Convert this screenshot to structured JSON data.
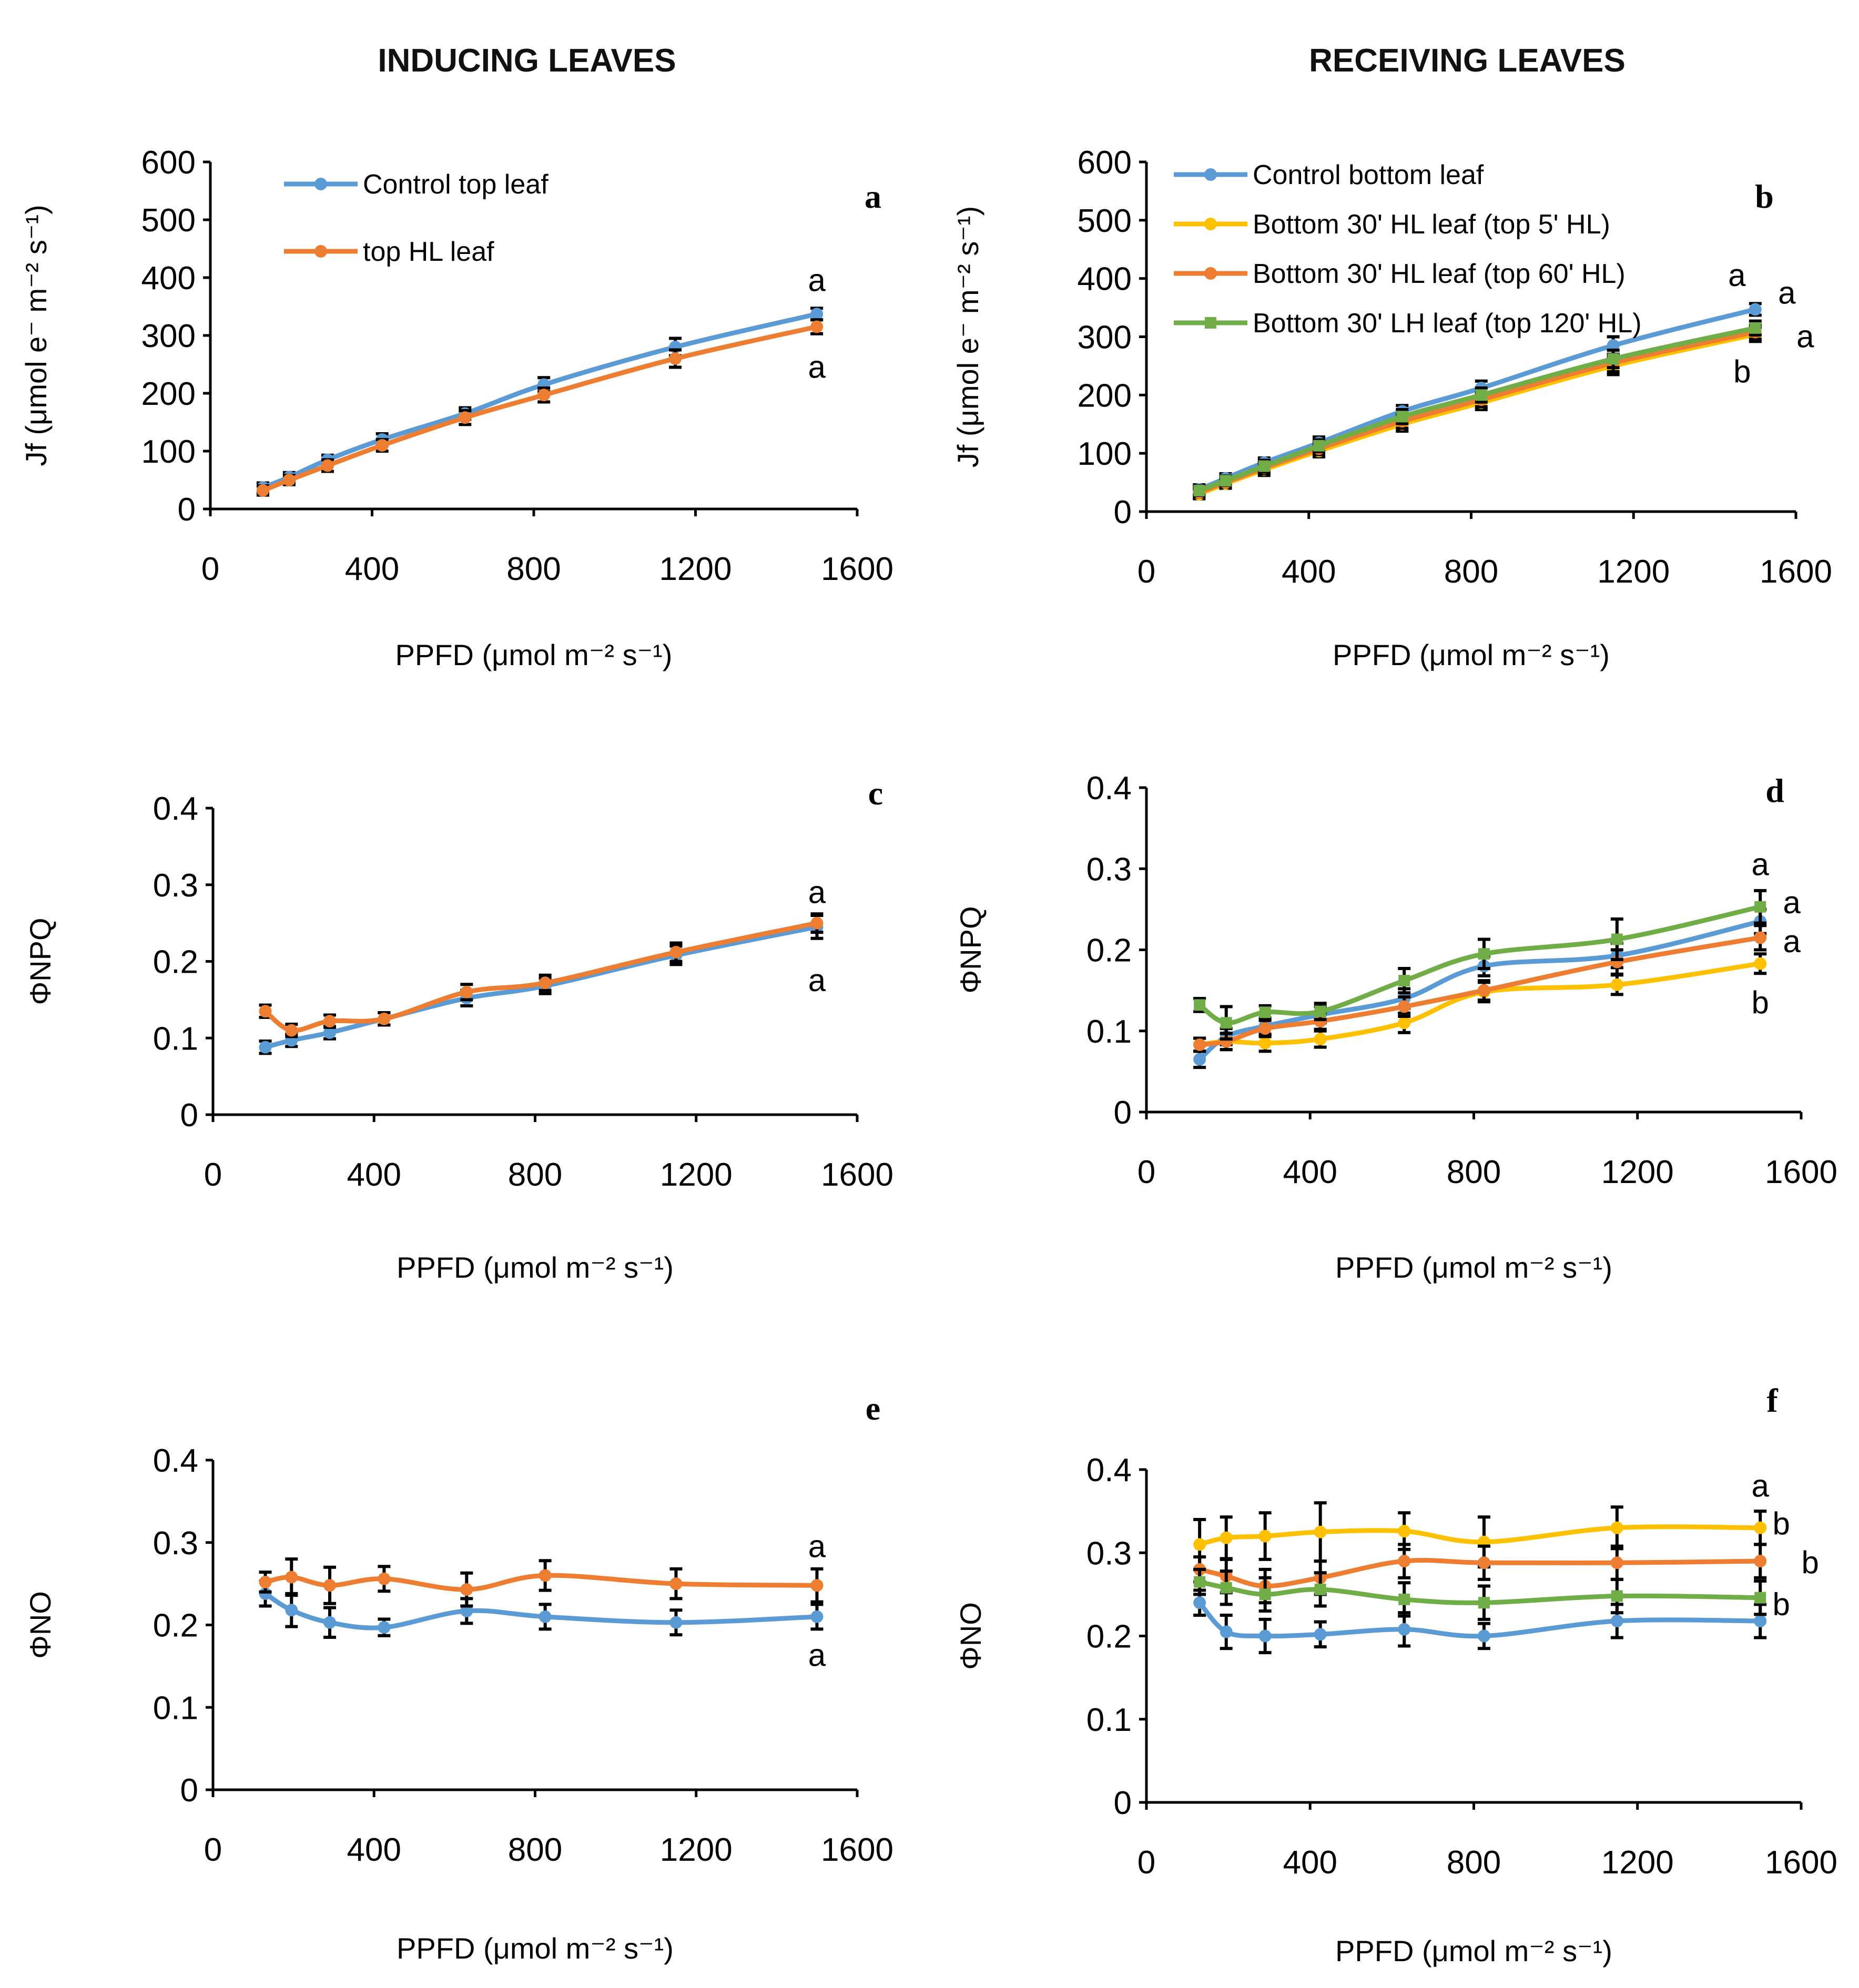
{
  "headings": {
    "left": "INDUCING LEAVES",
    "right": "RECEIVING LEAVES"
  },
  "colors": {
    "blue": "#5B9BD5",
    "orange": "#ED7D31",
    "yellow": "#FFC000",
    "green": "#70AD47"
  },
  "chart_data": [
    {
      "panel": "a",
      "type": "line",
      "ylim": [
        0,
        600
      ],
      "xlim": [
        0,
        1600
      ],
      "yticks": [
        "0",
        "100",
        "200",
        "300",
        "400",
        "500",
        "600"
      ],
      "xticks": [
        "0",
        "400",
        "800",
        "1200",
        "1600"
      ],
      "ylabel": "Jf (μmol e⁻ m⁻² s⁻¹)",
      "xlabel": "PPFD (μmol m⁻² s⁻¹)",
      "x": [
        130,
        195,
        290,
        425,
        630,
        825,
        1150,
        1500
      ],
      "series": [
        {
          "name": "Control top leaf",
          "color": "#5B9BD5",
          "marker": "circle",
          "values": [
            37,
            55,
            85,
            120,
            165,
            215,
            280,
            337
          ],
          "errors": [
            8,
            8,
            8,
            10,
            10,
            12,
            15,
            10
          ]
        },
        {
          "name": "top HL leaf",
          "color": "#ED7D31",
          "marker": "circle",
          "values": [
            32,
            50,
            75,
            110,
            158,
            197,
            260,
            315
          ],
          "errors": [
            8,
            8,
            10,
            10,
            12,
            12,
            15,
            12
          ]
        }
      ],
      "legend": "top-left",
      "significance": [
        {
          "label": "a",
          "value": 395
        },
        {
          "label": "a",
          "value": 245
        }
      ]
    },
    {
      "panel": "b",
      "type": "line",
      "ylim": [
        0,
        600
      ],
      "xlim": [
        0,
        1600
      ],
      "yticks": [
        "0",
        "100",
        "200",
        "300",
        "400",
        "500",
        "600"
      ],
      "xticks": [
        "0",
        "400",
        "800",
        "1200",
        "1600"
      ],
      "ylabel": "Jf (μmol e⁻ m⁻² s⁻¹)",
      "xlabel": "PPFD (μmol m⁻² s⁻¹)",
      "x": [
        130,
        195,
        290,
        425,
        630,
        825,
        1150,
        1500
      ],
      "series": [
        {
          "name": "Control bottom leaf",
          "color": "#5B9BD5",
          "marker": "circle",
          "values": [
            38,
            57,
            84,
            118,
            172,
            212,
            285,
            347
          ],
          "errors": [
            8,
            8,
            8,
            10,
            10,
            12,
            15,
            10
          ]
        },
        {
          "name": "Bottom 30' HL leaf (top 5' HL)",
          "color": "#FFC000",
          "marker": "circle",
          "values": [
            30,
            48,
            72,
            104,
            150,
            187,
            250,
            304
          ],
          "errors": [
            8,
            8,
            10,
            10,
            12,
            12,
            15,
            12
          ]
        },
        {
          "name": "Bottom 30' HL leaf (top 60' HL)",
          "color": "#ED7D31",
          "marker": "circle",
          "values": [
            33,
            50,
            75,
            108,
            155,
            192,
            255,
            308
          ],
          "errors": [
            8,
            8,
            10,
            10,
            12,
            12,
            15,
            12
          ]
        },
        {
          "name": "Bottom 30' LH leaf (top 120' HL)",
          "color": "#70AD47",
          "marker": "square",
          "values": [
            36,
            53,
            78,
            113,
            163,
            200,
            262,
            315
          ],
          "errors": [
            8,
            8,
            10,
            10,
            12,
            12,
            15,
            12
          ]
        }
      ],
      "legend": "top-left",
      "significance": [
        {
          "label": "a",
          "value": 405
        },
        {
          "label": "a",
          "value": 375
        },
        {
          "label": "a",
          "value": 300
        },
        {
          "label": "b",
          "value": 240
        }
      ]
    },
    {
      "panel": "c",
      "type": "line",
      "ylim": [
        0,
        0.4
      ],
      "xlim": [
        0,
        1600
      ],
      "yticks": [
        "0",
        "0.1",
        "0.2",
        "0.3",
        "0.4"
      ],
      "xticks": [
        "0",
        "400",
        "800",
        "1200",
        "1600"
      ],
      "ylabel": "ΦNPQ",
      "xlabel": "PPFD (μmol m⁻² s⁻¹)",
      "x": [
        130,
        195,
        290,
        425,
        630,
        825,
        1150,
        1500
      ],
      "series": [
        {
          "name": "Control top leaf",
          "color": "#5B9BD5",
          "marker": "circle",
          "values": [
            0.088,
            0.097,
            0.107,
            0.125,
            0.152,
            0.168,
            0.208,
            0.245
          ],
          "errors": [
            0.008,
            0.008,
            0.008,
            0.008,
            0.01,
            0.01,
            0.012,
            0.015
          ]
        },
        {
          "name": "top HL leaf",
          "color": "#ED7D31",
          "marker": "circle",
          "values": [
            0.135,
            0.11,
            0.122,
            0.125,
            0.16,
            0.172,
            0.212,
            0.25
          ],
          "errors": [
            0.008,
            0.008,
            0.008,
            0.008,
            0.01,
            0.01,
            0.012,
            0.012
          ]
        }
      ],
      "significance": [
        {
          "label": "a",
          "value": 0.29
        },
        {
          "label": "a",
          "value": 0.175
        }
      ]
    },
    {
      "panel": "d",
      "type": "line",
      "ylim": [
        0,
        0.4
      ],
      "xlim": [
        0,
        1600
      ],
      "yticks": [
        "0",
        "0.1",
        "0.2",
        "0.3",
        "0.4"
      ],
      "xticks": [
        "0",
        "400",
        "800",
        "1200",
        "1600"
      ],
      "ylabel": "ΦNPQ",
      "xlabel": "PPFD (μmol m⁻² s⁻¹)",
      "x": [
        130,
        195,
        290,
        425,
        630,
        825,
        1150,
        1500
      ],
      "series": [
        {
          "name": "Control bottom leaf",
          "color": "#5B9BD5",
          "marker": "circle",
          "values": [
            0.065,
            0.093,
            0.106,
            0.12,
            0.14,
            0.18,
            0.193,
            0.235
          ],
          "errors": [
            0.01,
            0.01,
            0.01,
            0.01,
            0.012,
            0.012,
            0.015,
            0.015
          ]
        },
        {
          "name": "Bottom 30' HL leaf (top 5' HL)",
          "color": "#FFC000",
          "marker": "circle",
          "values": [
            0.083,
            0.087,
            0.085,
            0.09,
            0.11,
            0.148,
            0.157,
            0.183
          ],
          "errors": [
            0.008,
            0.01,
            0.01,
            0.01,
            0.012,
            0.012,
            0.012,
            0.012
          ]
        },
        {
          "name": "Bottom 30' HL leaf (top 60' HL)",
          "color": "#ED7D31",
          "marker": "circle",
          "values": [
            0.083,
            0.087,
            0.103,
            0.112,
            0.13,
            0.15,
            0.185,
            0.215
          ],
          "errors": [
            0.008,
            0.01,
            0.01,
            0.01,
            0.012,
            0.012,
            0.015,
            0.015
          ]
        },
        {
          "name": "Bottom 30' LH leaf (top 120' HL)",
          "color": "#70AD47",
          "marker": "square",
          "values": [
            0.132,
            0.11,
            0.123,
            0.124,
            0.162,
            0.195,
            0.213,
            0.253
          ],
          "errors": [
            0.008,
            0.02,
            0.008,
            0.01,
            0.015,
            0.018,
            0.025,
            0.02
          ]
        }
      ],
      "significance": [
        {
          "label": "a",
          "value": 0.305
        },
        {
          "label": "a",
          "value": 0.258
        },
        {
          "label": "a",
          "value": 0.21
        },
        {
          "label": "b",
          "value": 0.135
        }
      ]
    },
    {
      "panel": "e",
      "type": "line",
      "ylim": [
        0,
        0.4
      ],
      "xlim": [
        0,
        1600
      ],
      "yticks": [
        "0",
        "0.1",
        "0.2",
        "0.3",
        "0.4"
      ],
      "xticks": [
        "0",
        "400",
        "800",
        "1200",
        "1600"
      ],
      "ylabel": "ΦNO",
      "xlabel": "PPFD (μmol m⁻² s⁻¹)",
      "x": [
        130,
        195,
        290,
        425,
        630,
        825,
        1150,
        1500
      ],
      "series": [
        {
          "name": "Control top leaf",
          "color": "#5B9BD5",
          "marker": "circle",
          "values": [
            0.238,
            0.218,
            0.203,
            0.197,
            0.217,
            0.21,
            0.203,
            0.21
          ],
          "errors": [
            0.015,
            0.02,
            0.018,
            0.01,
            0.015,
            0.015,
            0.015,
            0.015
          ]
        },
        {
          "name": "top HL leaf",
          "color": "#ED7D31",
          "marker": "circle",
          "values": [
            0.252,
            0.258,
            0.248,
            0.256,
            0.243,
            0.26,
            0.25,
            0.248
          ],
          "errors": [
            0.012,
            0.022,
            0.022,
            0.015,
            0.02,
            0.018,
            0.018,
            0.02
          ]
        }
      ],
      "significance": [
        {
          "label": "a",
          "value": 0.295
        },
        {
          "label": "a",
          "value": 0.163
        }
      ]
    },
    {
      "panel": "f",
      "type": "line",
      "ylim": [
        0,
        0.4
      ],
      "xlim": [
        0,
        1600
      ],
      "yticks": [
        "0",
        "0.1",
        "0.2",
        "0.3",
        "0.4"
      ],
      "xticks": [
        "0",
        "400",
        "800",
        "1200",
        "1600"
      ],
      "ylabel": "ΦNO",
      "xlabel": "PPFD (μmol m⁻² s⁻¹)",
      "x": [
        130,
        195,
        290,
        425,
        630,
        825,
        1150,
        1500
      ],
      "series": [
        {
          "name": "Control bottom leaf",
          "color": "#5B9BD5",
          "marker": "circle",
          "values": [
            0.24,
            0.205,
            0.2,
            0.202,
            0.208,
            0.2,
            0.218,
            0.218
          ],
          "errors": [
            0.015,
            0.02,
            0.02,
            0.015,
            0.02,
            0.015,
            0.02,
            0.02
          ]
        },
        {
          "name": "Bottom 30' HL leaf (top 5' HL)",
          "color": "#FFC000",
          "marker": "circle",
          "values": [
            0.31,
            0.318,
            0.32,
            0.325,
            0.326,
            0.313,
            0.33,
            0.33
          ],
          "errors": [
            0.03,
            0.025,
            0.028,
            0.035,
            0.022,
            0.03,
            0.025,
            0.02
          ]
        },
        {
          "name": "Bottom 30' HL leaf (top 60' HL)",
          "color": "#ED7D31",
          "marker": "circle",
          "values": [
            0.28,
            0.272,
            0.26,
            0.27,
            0.29,
            0.288,
            0.288,
            0.29
          ],
          "errors": [
            0.015,
            0.02,
            0.02,
            0.02,
            0.02,
            0.02,
            0.02,
            0.02
          ]
        },
        {
          "name": "Bottom 30' LH leaf (top 120' HL)",
          "color": "#70AD47",
          "marker": "square",
          "values": [
            0.265,
            0.258,
            0.25,
            0.256,
            0.244,
            0.24,
            0.248,
            0.246
          ],
          "errors": [
            0.015,
            0.02,
            0.02,
            0.02,
            0.02,
            0.02,
            0.02,
            0.02
          ]
        }
      ],
      "significance": [
        {
          "label": "a",
          "value": 0.38
        },
        {
          "label": "b",
          "value": 0.335
        },
        {
          "label": "b",
          "value": 0.288
        },
        {
          "label": "b",
          "value": 0.238
        }
      ]
    }
  ]
}
